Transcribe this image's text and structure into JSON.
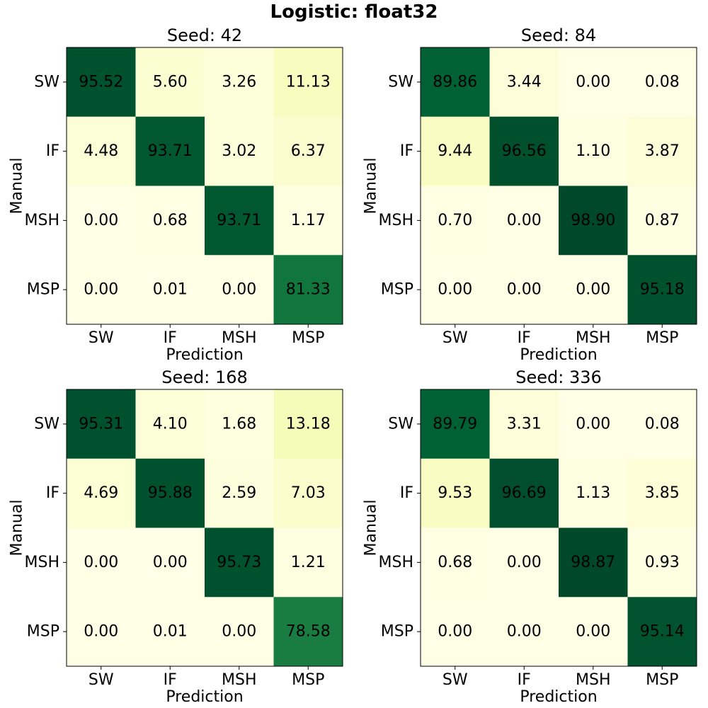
{
  "figure": {
    "title": "Logistic: float32"
  },
  "chart_data": [
    {
      "type": "heatmap",
      "title": "Seed: 42",
      "xlabel": "Prediction",
      "ylabel": "Manual",
      "x_categories": [
        "SW",
        "IF",
        "MSH",
        "MSP"
      ],
      "y_categories": [
        "SW",
        "IF",
        "MSH",
        "MSP"
      ],
      "values": [
        [
          95.52,
          5.6,
          3.26,
          11.13
        ],
        [
          4.48,
          93.71,
          3.02,
          6.37
        ],
        [
          0.0,
          0.68,
          93.71,
          1.17
        ],
        [
          0.0,
          0.01,
          0.0,
          81.33
        ]
      ],
      "labels": [
        [
          "95.52",
          "5.60",
          "3.26",
          "11.13"
        ],
        [
          "4.48",
          "93.71",
          "3.02",
          "6.37"
        ],
        [
          "0.00",
          "0.68",
          "93.71",
          "1.17"
        ],
        [
          "0.00",
          "0.01",
          "0.00",
          "81.33"
        ]
      ],
      "colormap": "YlGn",
      "vrange": [
        0,
        100
      ]
    },
    {
      "type": "heatmap",
      "title": "Seed: 84",
      "xlabel": "Prediction",
      "ylabel": "Manual",
      "x_categories": [
        "SW",
        "IF",
        "MSH",
        "MSP"
      ],
      "y_categories": [
        "SW",
        "IF",
        "MSH",
        "MSP"
      ],
      "values": [
        [
          89.86,
          3.44,
          0.0,
          0.08
        ],
        [
          9.44,
          96.56,
          1.1,
          3.87
        ],
        [
          0.7,
          0.0,
          98.9,
          0.87
        ],
        [
          0.0,
          0.0,
          0.0,
          95.18
        ]
      ],
      "labels": [
        [
          "89.86",
          "3.44",
          "0.00",
          "0.08"
        ],
        [
          "9.44",
          "96.56",
          "1.10",
          "3.87"
        ],
        [
          "0.70",
          "0.00",
          "98.90",
          "0.87"
        ],
        [
          "0.00",
          "0.00",
          "0.00",
          "95.18"
        ]
      ],
      "colormap": "YlGn",
      "vrange": [
        0,
        100
      ]
    },
    {
      "type": "heatmap",
      "title": "Seed: 168",
      "xlabel": "Prediction",
      "ylabel": "Manual",
      "x_categories": [
        "SW",
        "IF",
        "MSH",
        "MSP"
      ],
      "y_categories": [
        "SW",
        "IF",
        "MSH",
        "MSP"
      ],
      "values": [
        [
          95.31,
          4.1,
          1.68,
          13.18
        ],
        [
          4.69,
          95.88,
          2.59,
          7.03
        ],
        [
          0.0,
          0.0,
          95.73,
          1.21
        ],
        [
          0.0,
          0.01,
          0.0,
          78.58
        ]
      ],
      "labels": [
        [
          "95.31",
          "4.10",
          "1.68",
          "13.18"
        ],
        [
          "4.69",
          "95.88",
          "2.59",
          "7.03"
        ],
        [
          "0.00",
          "0.00",
          "95.73",
          "1.21"
        ],
        [
          "0.00",
          "0.01",
          "0.00",
          "78.58"
        ]
      ],
      "colormap": "YlGn",
      "vrange": [
        0,
        100
      ]
    },
    {
      "type": "heatmap",
      "title": "Seed: 336",
      "xlabel": "Prediction",
      "ylabel": "Manual",
      "x_categories": [
        "SW",
        "IF",
        "MSH",
        "MSP"
      ],
      "y_categories": [
        "SW",
        "IF",
        "MSH",
        "MSP"
      ],
      "values": [
        [
          89.79,
          3.31,
          0.0,
          0.08
        ],
        [
          9.53,
          96.69,
          1.13,
          3.85
        ],
        [
          0.68,
          0.0,
          98.87,
          0.93
        ],
        [
          0.0,
          0.0,
          0.0,
          95.14
        ]
      ],
      "labels": [
        [
          "89.79",
          "3.31",
          "0.00",
          "0.08"
        ],
        [
          "9.53",
          "96.69",
          "1.13",
          "3.85"
        ],
        [
          "0.68",
          "0.00",
          "98.87",
          "0.93"
        ],
        [
          "0.00",
          "0.00",
          "0.00",
          "95.14"
        ]
      ],
      "colormap": "YlGn",
      "vrange": [
        0,
        100
      ]
    }
  ]
}
